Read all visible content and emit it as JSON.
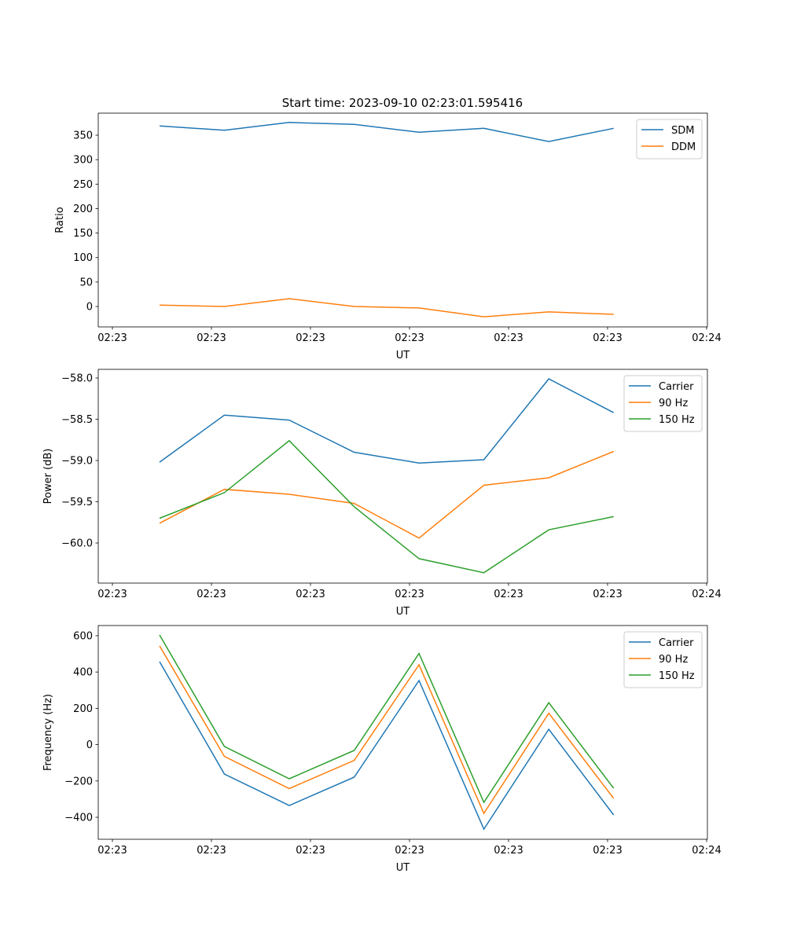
{
  "title": "Start time: 2023-09-10 02:23:01.595416",
  "colors": {
    "blue": "#1f77b4",
    "orange": "#ff7f0e",
    "green": "#2ca02c"
  },
  "chart_data": [
    {
      "type": "line",
      "xlabel": "UT",
      "ylabel": "Ratio",
      "x_seconds_after_0223": [
        4.76,
        11.31,
        17.86,
        24.41,
        30.96,
        37.51,
        44.06,
        50.61
      ],
      "xlim": [
        -1.43,
        60.08
      ],
      "xticks": [
        0,
        10,
        20,
        30,
        40,
        50,
        60
      ],
      "xtick_labels": [
        "02:23",
        "02:23",
        "02:23",
        "02:23",
        "02:23",
        "02:23",
        "02:24"
      ],
      "ylim": [
        -41.7,
        395
      ],
      "yticks": [
        0,
        50,
        100,
        150,
        200,
        250,
        300,
        350
      ],
      "ytick_labels": [
        "0",
        "50",
        "100",
        "150",
        "200",
        "250",
        "300",
        "350"
      ],
      "legend": "top-right",
      "series": [
        {
          "name": "SDM",
          "color": "#1f77b4",
          "values": [
            369,
            360,
            376,
            372,
            356,
            364,
            337,
            364
          ]
        },
        {
          "name": "DDM",
          "color": "#ff7f0e",
          "values": [
            3,
            0,
            16,
            0,
            -3,
            -21,
            -11,
            -16
          ]
        }
      ]
    },
    {
      "type": "line",
      "xlabel": "UT",
      "ylabel": "Power (dB)",
      "x_seconds_after_0223": [
        4.76,
        11.31,
        17.86,
        24.41,
        30.96,
        37.51,
        44.06,
        50.61
      ],
      "xlim": [
        -1.43,
        60.08
      ],
      "xticks": [
        0,
        10,
        20,
        30,
        40,
        50,
        60
      ],
      "xtick_labels": [
        "02:23",
        "02:23",
        "02:23",
        "02:23",
        "02:23",
        "02:23",
        "02:24"
      ],
      "ylim": [
        -60.486,
        -57.895
      ],
      "yticks": [
        -60.0,
        -59.5,
        -59.0,
        -58.5,
        -58.0
      ],
      "ytick_labels": [
        "−60.0",
        "−59.5",
        "−59.0",
        "−58.5",
        "−58.0"
      ],
      "legend": "top-right",
      "series": [
        {
          "name": "Carrier",
          "color": "#1f77b4",
          "values": [
            -59.02,
            -58.45,
            -58.51,
            -58.9,
            -59.03,
            -58.99,
            -58.01,
            -58.42
          ]
        },
        {
          "name": "90 Hz",
          "color": "#ff7f0e",
          "values": [
            -59.76,
            -59.35,
            -59.41,
            -59.52,
            -59.94,
            -59.3,
            -59.21,
            -58.89
          ]
        },
        {
          "name": "150 Hz",
          "color": "#2ca02c",
          "values": [
            -59.7,
            -59.39,
            -58.76,
            -59.56,
            -60.19,
            -60.36,
            -59.84,
            -59.68
          ]
        }
      ]
    },
    {
      "type": "line",
      "xlabel": "UT",
      "ylabel": "Frequency (Hz)",
      "x_seconds_after_0223": [
        4.76,
        11.31,
        17.86,
        24.41,
        30.96,
        37.51,
        44.06,
        50.61
      ],
      "xlim": [
        -1.43,
        60.08
      ],
      "xticks": [
        0,
        10,
        20,
        30,
        40,
        50,
        60
      ],
      "xtick_labels": [
        "02:23",
        "02:23",
        "02:23",
        "02:23",
        "02:23",
        "02:23",
        "02:24"
      ],
      "ylim": [
        -521,
        656
      ],
      "yticks": [
        -400,
        -200,
        0,
        200,
        400,
        600
      ],
      "ytick_labels": [
        "−400",
        "−200",
        "0",
        "200",
        "400",
        "600"
      ],
      "legend": "top-right",
      "series": [
        {
          "name": "Carrier",
          "color": "#1f77b4",
          "values": [
            457,
            -162,
            -335,
            -179,
            353,
            -465,
            85,
            -387
          ]
        },
        {
          "name": "90 Hz",
          "color": "#ff7f0e",
          "values": [
            544,
            -65,
            -242,
            -87,
            440,
            -378,
            173,
            -296
          ]
        },
        {
          "name": "150 Hz",
          "color": "#2ca02c",
          "values": [
            604,
            -10,
            -188,
            -32,
            502,
            -318,
            231,
            -240
          ]
        }
      ]
    }
  ]
}
